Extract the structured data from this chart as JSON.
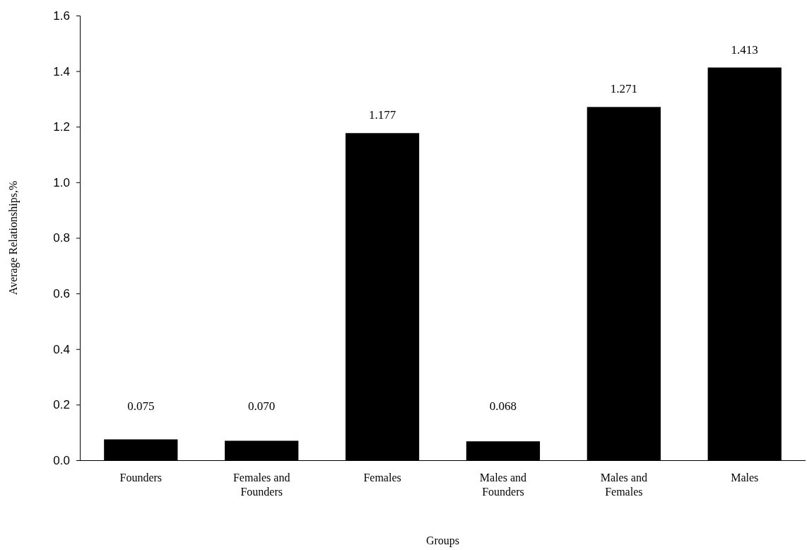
{
  "chart_data": {
    "type": "bar",
    "xlabel": "Groups",
    "ylabel": "Average Relationships,%",
    "categories": [
      "Founders",
      "Females and Founders",
      "Females",
      "Males and Founders",
      "Males and Females",
      "Males"
    ],
    "values": [
      0.075,
      0.07,
      1.177,
      0.068,
      1.271,
      1.413
    ],
    "value_labels": [
      "0.075",
      "0.070",
      "1.177",
      "0.068",
      "1.271",
      "1.413"
    ],
    "color": "#000000",
    "ylim": [
      0,
      1.6
    ],
    "yticks": [
      {
        "value": 0,
        "label": "0.0"
      },
      {
        "value": 0.2,
        "label": "0.2"
      },
      {
        "value": 0.4,
        "label": "0.4"
      },
      {
        "value": 0.6,
        "label": "0.6"
      },
      {
        "value": 0.8,
        "label": "0.8"
      },
      {
        "value": 1,
        "label": "1.0"
      },
      {
        "value": 1.2,
        "label": "1.2"
      },
      {
        "value": 1.4,
        "label": "1.4"
      },
      {
        "value": 1.6,
        "label": "1.6"
      }
    ],
    "grid": false
  }
}
